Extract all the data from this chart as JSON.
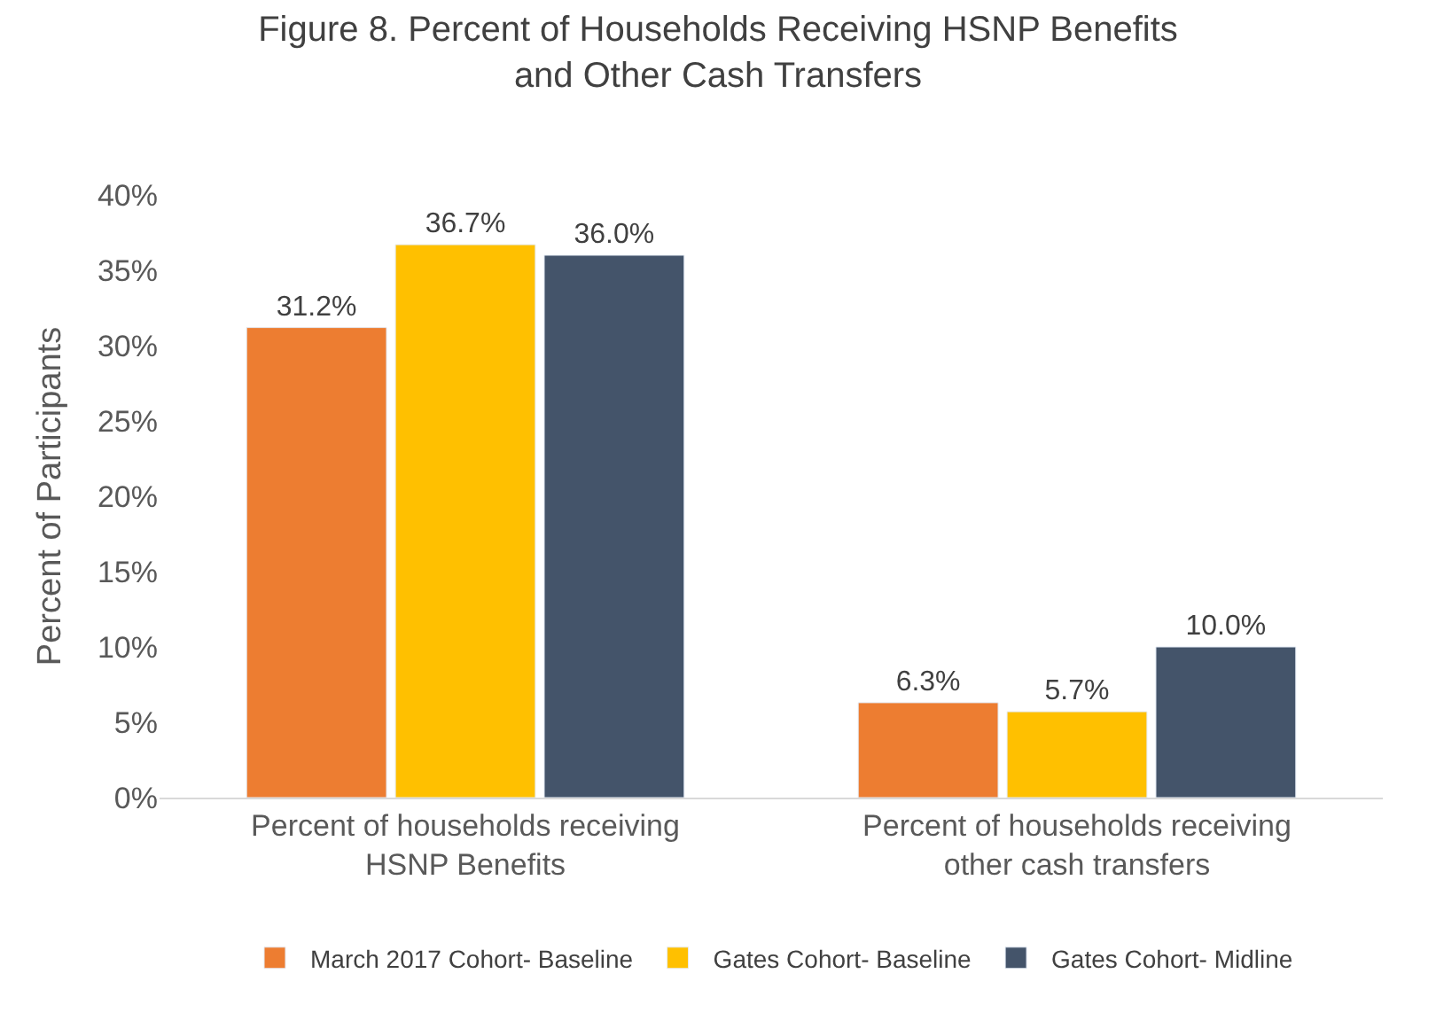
{
  "chart_data": {
    "type": "bar",
    "title": "Figure 8. Percent of Households Receiving HSNP Benefits and Other Cash Transfers",
    "ylabel": "Percent of Participants",
    "categories": [
      "Percent of households receiving HSNP Benefits",
      "Percent of households receiving other cash transfers"
    ],
    "series": [
      {
        "name": "March 2017 Cohort- Baseline",
        "color": "#ed7d31",
        "values": [
          31.2,
          6.3
        ],
        "value_labels": [
          "31.2%",
          "6.3%"
        ]
      },
      {
        "name": "Gates Cohort- Baseline",
        "color": "#ffc000",
        "values": [
          36.7,
          5.7
        ],
        "value_labels": [
          "36.7%",
          "5.7%"
        ]
      },
      {
        "name": "Gates Cohort- Midline",
        "color": "#44546a",
        "values": [
          36.0,
          10.0
        ],
        "value_labels": [
          "36.0%",
          "10.0%"
        ]
      }
    ],
    "ylim": [
      0,
      40
    ],
    "yticks": [
      {
        "value": 0,
        "label": "0%"
      },
      {
        "value": 5,
        "label": "5%"
      },
      {
        "value": 10,
        "label": "10%"
      },
      {
        "value": 15,
        "label": "15%"
      },
      {
        "value": 20,
        "label": "20%"
      },
      {
        "value": 25,
        "label": "25%"
      },
      {
        "value": 30,
        "label": "30%"
      },
      {
        "value": 35,
        "label": "35%"
      },
      {
        "value": 40,
        "label": "40%"
      }
    ],
    "grid": false,
    "legend": "bottom"
  }
}
